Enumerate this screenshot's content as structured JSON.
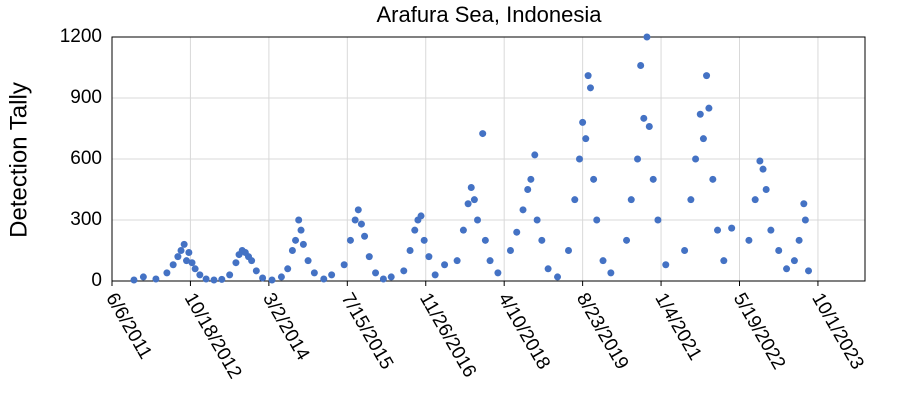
{
  "chart_data": {
    "type": "scatter",
    "title": "Arafura Sea, Indonesia",
    "y_label": "Detection Tally",
    "color": "#4472c4",
    "grid": true,
    "xlim": [
      40700,
      45500
    ],
    "xticks": [
      {
        "value": 40700,
        "label": "6/6/2011"
      },
      {
        "value": 41200,
        "label": "10/18/2012"
      },
      {
        "value": 41700,
        "label": "3/2/2014"
      },
      {
        "value": 42200,
        "label": "7/15/2015"
      },
      {
        "value": 42700,
        "label": "11/26/2016"
      },
      {
        "value": 43200,
        "label": "4/10/2018"
      },
      {
        "value": 43700,
        "label": "8/23/2019"
      },
      {
        "value": 44200,
        "label": "1/4/2021"
      },
      {
        "value": 44700,
        "label": "5/19/2022"
      },
      {
        "value": 45200,
        "label": "10/1/2023"
      }
    ],
    "ylim": [
      0,
      1200
    ],
    "yticks": [
      0,
      300,
      600,
      900,
      1200
    ],
    "x": [
      40840,
      40900,
      40980,
      41050,
      41090,
      41120,
      41140,
      41160,
      41175,
      41190,
      41210,
      41230,
      41260,
      41300,
      41350,
      41400,
      41450,
      41490,
      41510,
      41530,
      41550,
      41570,
      41590,
      41620,
      41660,
      41720,
      41780,
      41820,
      41850,
      41870,
      41890,
      41905,
      41920,
      41950,
      41990,
      42050,
      42100,
      42180,
      42220,
      42250,
      42270,
      42290,
      42310,
      42340,
      42380,
      42430,
      42480,
      42560,
      42600,
      42630,
      42650,
      42670,
      42690,
      42720,
      42760,
      42820,
      42900,
      42940,
      42970,
      42990,
      43010,
      43030,
      43063,
      43080,
      43110,
      43160,
      43240,
      43280,
      43320,
      43350,
      43370,
      43395,
      43410,
      43440,
      43480,
      43540,
      43610,
      43650,
      43680,
      43700,
      43720,
      43735,
      43750,
      43770,
      43790,
      43830,
      43880,
      43980,
      44010,
      44050,
      44070,
      44090,
      44110,
      44125,
      44150,
      44180,
      44230,
      44350,
      44390,
      44420,
      44450,
      44470,
      44490,
      44505,
      44530,
      44560,
      44600,
      44650,
      44760,
      44800,
      44830,
      44850,
      44870,
      44900,
      44950,
      45000,
      45050,
      45080,
      45110,
      45120,
      45140
    ],
    "values": [
      5,
      20,
      10,
      40,
      80,
      120,
      150,
      180,
      100,
      140,
      90,
      60,
      30,
      10,
      5,
      8,
      30,
      90,
      130,
      150,
      140,
      120,
      100,
      50,
      15,
      5,
      20,
      60,
      150,
      200,
      300,
      250,
      180,
      100,
      40,
      10,
      30,
      80,
      200,
      300,
      350,
      280,
      220,
      120,
      40,
      10,
      20,
      50,
      150,
      250,
      300,
      320,
      200,
      120,
      30,
      80,
      100,
      250,
      380,
      460,
      400,
      300,
      725,
      200,
      100,
      40,
      150,
      240,
      350,
      450,
      500,
      620,
      300,
      200,
      60,
      20,
      150,
      400,
      600,
      780,
      700,
      1010,
      950,
      500,
      300,
      100,
      40,
      200,
      400,
      600,
      1060,
      800,
      1200,
      760,
      500,
      300,
      80,
      150,
      400,
      600,
      820,
      700,
      1010,
      850,
      500,
      250,
      100,
      260,
      200,
      400,
      590,
      550,
      450,
      250,
      150,
      60,
      100,
      200,
      380,
      300,
      50
    ]
  }
}
